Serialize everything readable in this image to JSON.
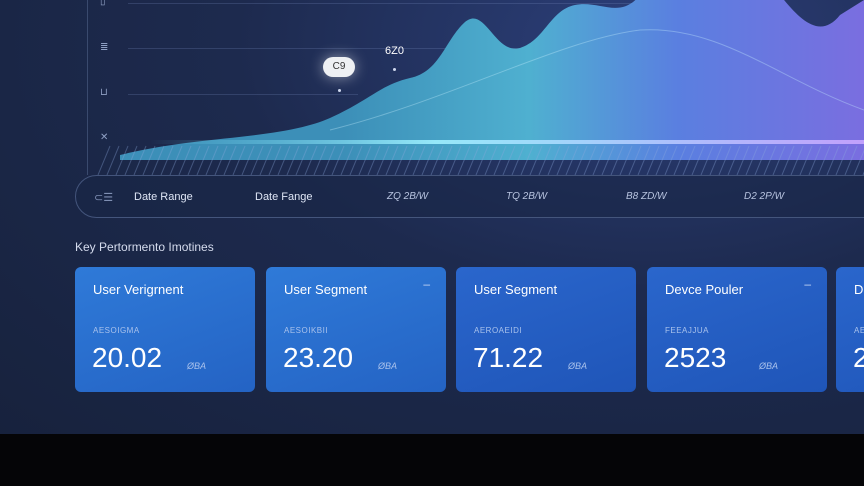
{
  "chart": {
    "y_ticks": [
      "▯",
      "≣",
      "⊔",
      "✕"
    ],
    "tooltip": "C9",
    "point_label": "6Z0"
  },
  "date_bar": {
    "icon": "list-icon",
    "labels": [
      "Date Range",
      "Date Fange",
      "ZQ 2B/W",
      "TQ 2B/W",
      "B8 ZD/W",
      "D2 2P/W"
    ]
  },
  "section_title": "Key Pertormento Imotines",
  "cards": [
    {
      "title": "User Verigrnent",
      "sub": "AESOIGMA",
      "value": "20.02",
      "delta": "ØBA",
      "menu": ""
    },
    {
      "title": "User Segment",
      "sub": "AESOIKBII",
      "value": "23.20",
      "delta": "ØBA",
      "menu": "–"
    },
    {
      "title": "User Segment",
      "sub": "AEROAEIDI",
      "value": "71.22",
      "delta": "ØBA",
      "menu": ""
    },
    {
      "title": "Devce Pouler",
      "sub": "FEEAJJUA",
      "value": "2523",
      "delta": "ØBA",
      "menu": "–"
    },
    {
      "title": "D",
      "sub": "AE",
      "value": "2",
      "delta": "",
      "menu": ""
    }
  ],
  "colors": {
    "accent": "#2f7ad8",
    "area_start": "#4fc3d6",
    "area_end": "#6b6fe0",
    "background": "#1d2a4e"
  }
}
